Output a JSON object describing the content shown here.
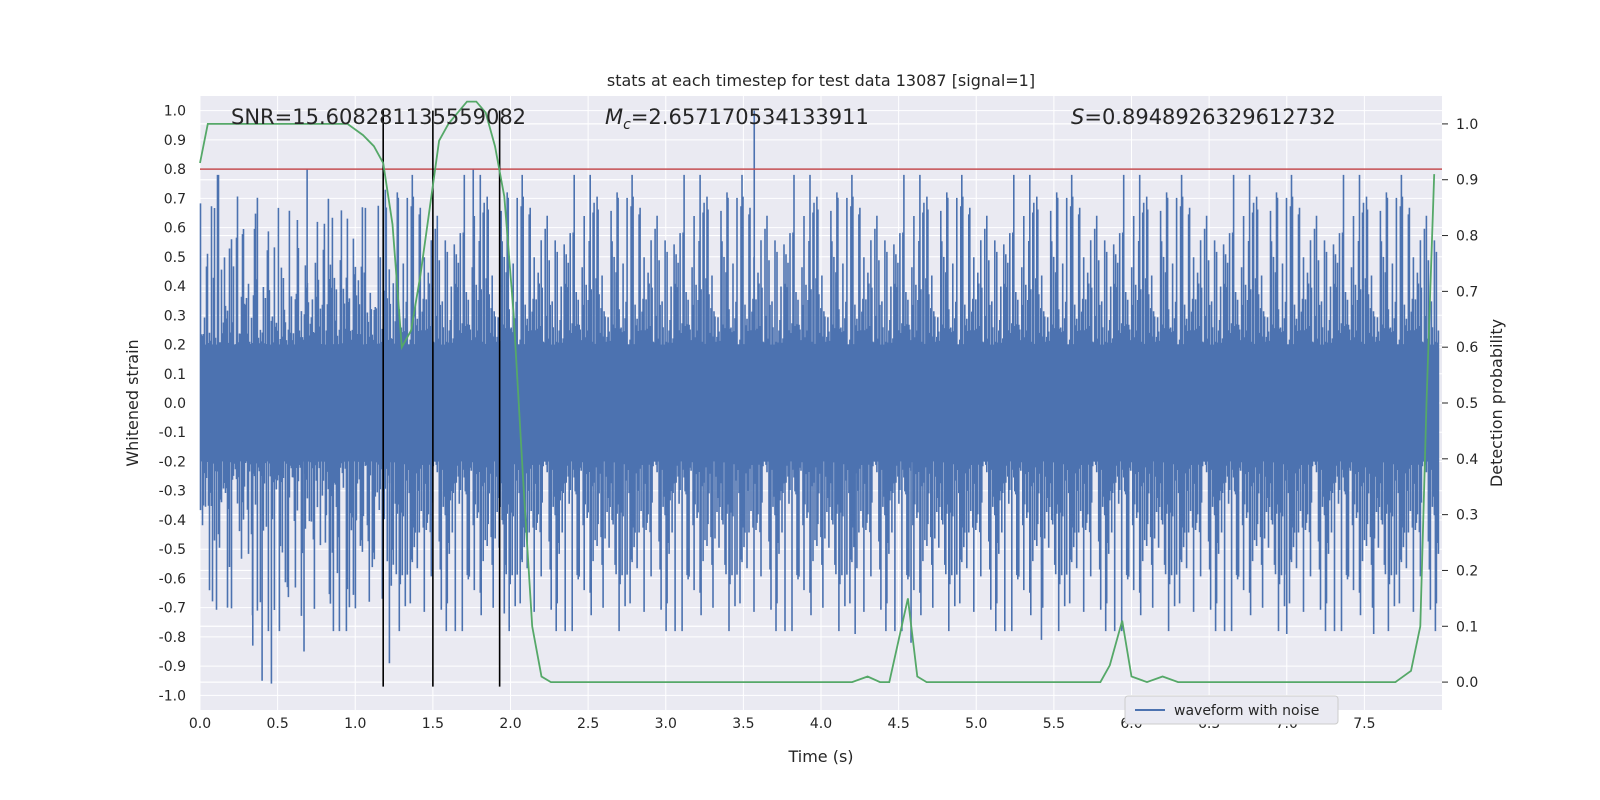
{
  "chart_data": {
    "type": "line",
    "title": "stats at each timestep for test data 13087 [signal=1]",
    "xlabel": "Time (s)",
    "ylabel_left": "Whitened strain",
    "ylabel_right": "Detection probability",
    "xlim": [
      0.0,
      8.0
    ],
    "ylim_left": [
      -1.05,
      1.05
    ],
    "ylim_right": [
      -0.05,
      1.05
    ],
    "x_ticks": [
      "0.0",
      "0.5",
      "1.0",
      "1.5",
      "2.0",
      "2.5",
      "3.0",
      "3.5",
      "4.0",
      "4.5",
      "5.0",
      "5.5",
      "6.0",
      "6.5",
      "7.0",
      "7.5"
    ],
    "x_tick_values": [
      0.0,
      0.5,
      1.0,
      1.5,
      2.0,
      2.5,
      3.0,
      3.5,
      4.0,
      4.5,
      5.0,
      5.5,
      6.0,
      6.5,
      7.0,
      7.5
    ],
    "y_left_ticks": [
      "1.0",
      "0.9",
      "0.8",
      "0.7",
      "0.6",
      "0.5",
      "0.4",
      "0.3",
      "0.2",
      "0.1",
      "0.0",
      "-0.1",
      "-0.2",
      "-0.3",
      "-0.4",
      "-0.5",
      "-0.6",
      "-0.7",
      "-0.8",
      "-0.9",
      "-1.0"
    ],
    "y_left_tick_values": [
      1.0,
      0.9,
      0.8,
      0.7,
      0.6,
      0.5,
      0.4,
      0.3,
      0.2,
      0.1,
      0.0,
      -0.1,
      -0.2,
      -0.3,
      -0.4,
      -0.5,
      -0.6,
      -0.7,
      -0.8,
      -0.9,
      -1.0
    ],
    "y_right_ticks": [
      "1.0",
      "0.9",
      "0.8",
      "0.7",
      "0.6",
      "0.5",
      "0.4",
      "0.3",
      "0.2",
      "0.1",
      "0.0"
    ],
    "y_right_tick_values": [
      1.0,
      0.9,
      0.8,
      0.7,
      0.6,
      0.5,
      0.4,
      0.3,
      0.2,
      0.1,
      0.0
    ],
    "annotations": [
      {
        "text": "SNR=15.608281135559082",
        "x": 0.2,
        "y": 1.02
      },
      {
        "text_var": "M",
        "text_sub": "c",
        "text_rest": "=2.657170534133911",
        "x": 2.6,
        "y": 1.02
      },
      {
        "text_var": "S",
        "text_sub": "",
        "text_rest": "=0.8948926329612732",
        "x": 5.6,
        "y": 1.02
      }
    ],
    "threshold": {
      "value": 0.8,
      "color": "#c44e52"
    },
    "vertical_markers": {
      "x": [
        1.18,
        1.5,
        1.93
      ],
      "y_range": [
        -0.97,
        1.0
      ],
      "color": "#000000"
    },
    "waveform": {
      "name": "waveform with noise",
      "color": "#4c72b0",
      "envelope_description_values": {
        "typical_top": 0.5,
        "typical_bottom": -0.5,
        "spike_top": 1.0,
        "spike_bottom": -0.96
      },
      "spikes": [
        {
          "x": 0.4,
          "v": -0.95
        },
        {
          "x": 0.46,
          "v": -0.96
        },
        {
          "x": 0.34,
          "v": -0.83
        },
        {
          "x": 0.67,
          "v": -0.85
        },
        {
          "x": 0.69,
          "v": 0.8
        },
        {
          "x": 1.22,
          "v": -0.89
        },
        {
          "x": 1.76,
          "v": 0.8
        },
        {
          "x": 1.96,
          "v": -0.72
        },
        {
          "x": 3.57,
          "v": 1.0
        },
        {
          "x": 7.0,
          "v": -0.79
        },
        {
          "x": 7.56,
          "v": -0.79
        },
        {
          "x": 4.58,
          "v": -0.82
        },
        {
          "x": 4.22,
          "v": -0.79
        },
        {
          "x": 5.42,
          "v": -0.81
        }
      ]
    },
    "detection_probability": {
      "name": "Detection probability",
      "color": "#55a868",
      "x": [
        0.0,
        0.05,
        0.1,
        0.2,
        0.4,
        0.6,
        0.8,
        0.95,
        1.05,
        1.12,
        1.18,
        1.24,
        1.3,
        1.36,
        1.42,
        1.48,
        1.54,
        1.6,
        1.66,
        1.72,
        1.78,
        1.84,
        1.9,
        1.96,
        2.02,
        2.08,
        2.14,
        2.2,
        2.26,
        2.5,
        3.0,
        3.5,
        4.0,
        4.2,
        4.3,
        4.38,
        4.44,
        4.56,
        4.62,
        4.68,
        4.8,
        5.0,
        5.1,
        5.2,
        5.5,
        5.6,
        5.8,
        5.86,
        5.94,
        6.0,
        6.1,
        6.2,
        6.3,
        6.5,
        7.0,
        7.5,
        7.7,
        7.8,
        7.86,
        7.9,
        7.95
      ],
      "y": [
        0.93,
        1.0,
        1.0,
        1.0,
        1.0,
        1.0,
        1.0,
        1.0,
        0.98,
        0.96,
        0.93,
        0.82,
        0.6,
        0.63,
        0.73,
        0.85,
        0.97,
        1.0,
        1.02,
        1.04,
        1.04,
        1.02,
        0.96,
        0.87,
        0.66,
        0.37,
        0.1,
        0.01,
        0.0,
        0.0,
        0.0,
        0.0,
        0.0,
        0.0,
        0.01,
        0.0,
        0.0,
        0.15,
        0.01,
        0.0,
        0.0,
        0.0,
        0.0,
        0.0,
        0.0,
        0.0,
        0.0,
        0.03,
        0.11,
        0.01,
        0.0,
        0.01,
        0.0,
        0.0,
        0.0,
        0.0,
        0.0,
        0.02,
        0.1,
        0.5,
        0.91
      ]
    },
    "legend": {
      "placement": "lower-right",
      "entries": [
        "waveform with noise"
      ]
    }
  }
}
